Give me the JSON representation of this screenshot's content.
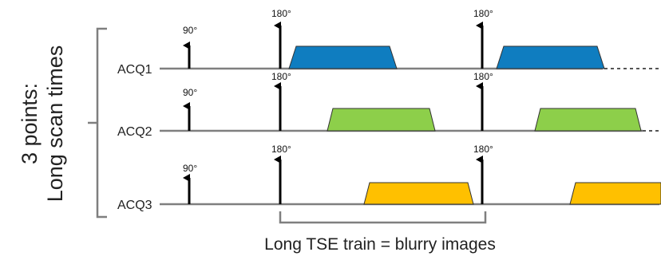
{
  "side_label": {
    "line1": "3 points:",
    "line2": "Long scan times"
  },
  "pulses": {
    "excitation_label": "90°",
    "refocus_label": "180°"
  },
  "rows": [
    {
      "label": "ACQ1",
      "color": "#0f7dc0",
      "continues": true
    },
    {
      "label": "ACQ2",
      "color": "#8dcf4a",
      "continues": true
    },
    {
      "label": "ACQ3",
      "color": "#ffc000",
      "continues": false
    }
  ],
  "caption": "Long TSE train = blurry images"
}
